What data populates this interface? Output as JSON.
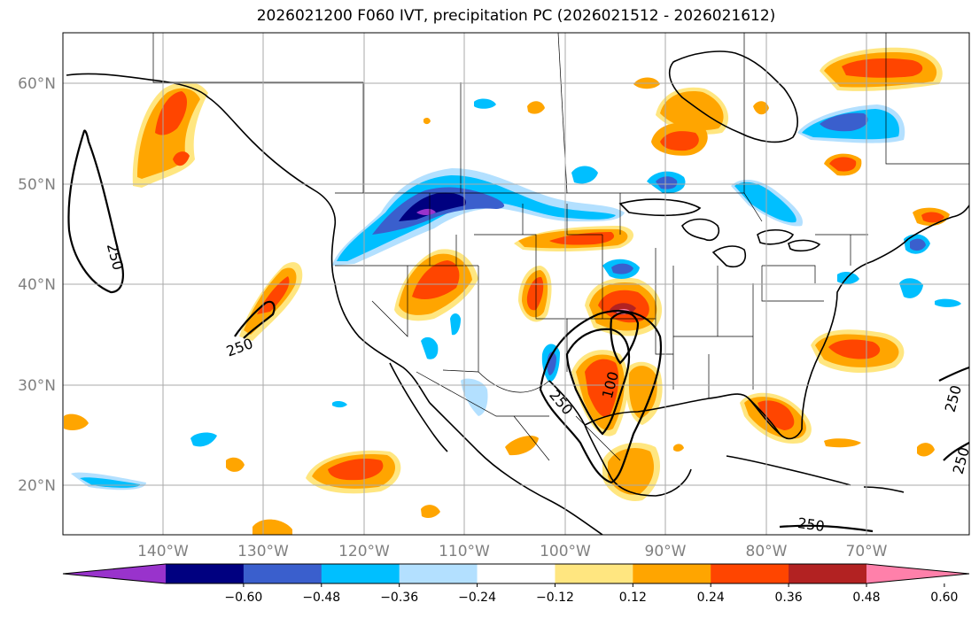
{
  "title": "2026021200 F060 IVT, precipitation PC (2026021512 - 2026021612)",
  "lat_labels": [
    "60°N",
    "50°N",
    "40°N",
    "30°N",
    "20°N"
  ],
  "lon_labels": [
    "140°W",
    "130°W",
    "120°W",
    "110°W",
    "100°W",
    "90°W",
    "80°W",
    "70°W"
  ],
  "contour_labels": [
    "250",
    "250",
    "100",
    "250",
    "250",
    "250",
    "250"
  ],
  "colorbar": {
    "ticks": [
      "−0.60",
      "−0.48",
      "−0.36",
      "−0.24",
      "−0.12",
      "0.12",
      "0.24",
      "0.36",
      "0.48",
      "0.60"
    ],
    "colors": [
      "#9933cc",
      "#000080",
      "#3a5fcd",
      "#00bfff",
      "#b3e0ff",
      "#ffffff",
      "#ffe680",
      "#ffa500",
      "#ff4500",
      "#b22222",
      "#ff80aa"
    ]
  }
}
